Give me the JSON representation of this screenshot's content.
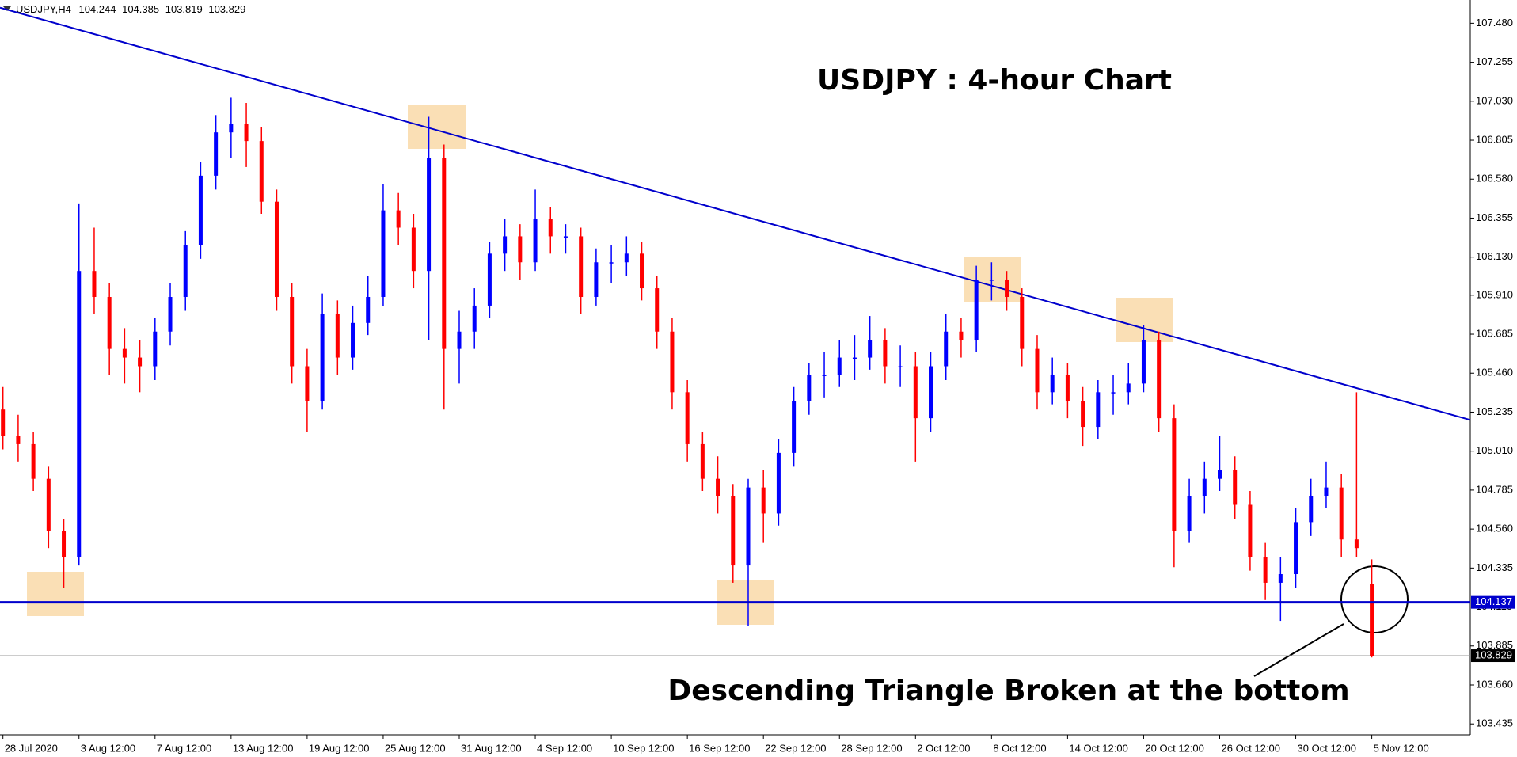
{
  "chart_data": {
    "type": "candlestick",
    "symbol": "USDJPY,H4",
    "title": "USDJPY : 4-hour Chart",
    "annotation": "Descending Triangle Broken at the bottom",
    "up_color": "#0000ff",
    "down_color": "#ff0000",
    "categories": [
      "28 Jul 2020",
      null,
      null,
      null,
      null,
      "3 Aug 12:00",
      null,
      null,
      null,
      null,
      "7 Aug 12:00",
      null,
      null,
      null,
      null,
      "13 Aug 12:00",
      null,
      null,
      null,
      null,
      "19 Aug 12:00",
      null,
      null,
      null,
      null,
      "25 Aug 12:00",
      null,
      null,
      null,
      null,
      "31 Aug 12:00",
      null,
      null,
      null,
      null,
      "4 Sep 12:00",
      null,
      null,
      null,
      null,
      "10 Sep 12:00",
      null,
      null,
      null,
      null,
      "16 Sep 12:00",
      null,
      null,
      null,
      null,
      "22 Sep 12:00",
      null,
      null,
      null,
      null,
      "28 Sep 12:00",
      null,
      null,
      null,
      null,
      "2 Oct 12:00",
      null,
      null,
      null,
      null,
      "8 Oct 12:00",
      null,
      null,
      null,
      null,
      "14 Oct 12:00",
      null,
      null,
      null,
      null,
      "20 Oct 12:00",
      null,
      null,
      null,
      null,
      "26 Oct 12:00",
      null,
      null,
      null,
      null,
      "30 Oct 12:00",
      null,
      null,
      null,
      null,
      "5 Nov 12:00"
    ],
    "ohlc": [
      [
        105.25,
        105.38,
        105.02,
        105.1
      ],
      [
        105.1,
        105.22,
        104.95,
        105.05
      ],
      [
        105.05,
        105.12,
        104.78,
        104.85
      ],
      [
        104.85,
        104.92,
        104.45,
        104.55
      ],
      [
        104.55,
        104.62,
        104.22,
        104.4
      ],
      [
        104.4,
        106.44,
        104.35,
        106.05
      ],
      [
        106.05,
        106.3,
        105.8,
        105.9
      ],
      [
        105.9,
        105.98,
        105.45,
        105.6
      ],
      [
        105.6,
        105.72,
        105.4,
        105.55
      ],
      [
        105.55,
        105.65,
        105.35,
        105.5
      ],
      [
        105.5,
        105.78,
        105.42,
        105.7
      ],
      [
        105.7,
        105.98,
        105.62,
        105.9
      ],
      [
        105.9,
        106.28,
        105.82,
        106.2
      ],
      [
        106.2,
        106.68,
        106.12,
        106.6
      ],
      [
        106.6,
        106.95,
        106.52,
        106.85
      ],
      [
        106.85,
        107.05,
        106.7,
        106.9
      ],
      [
        106.9,
        107.02,
        106.65,
        106.8
      ],
      [
        106.8,
        106.88,
        106.38,
        106.45
      ],
      [
        106.45,
        106.52,
        105.82,
        105.9
      ],
      [
        105.9,
        105.98,
        105.4,
        105.5
      ],
      [
        105.5,
        105.6,
        105.12,
        105.3
      ],
      [
        105.3,
        105.92,
        105.25,
        105.8
      ],
      [
        105.8,
        105.88,
        105.45,
        105.55
      ],
      [
        105.55,
        105.85,
        105.48,
        105.75
      ],
      [
        105.75,
        106.02,
        105.68,
        105.9
      ],
      [
        105.9,
        106.55,
        105.85,
        106.4
      ],
      [
        106.4,
        106.5,
        106.2,
        106.3
      ],
      [
        106.3,
        106.38,
        105.95,
        106.05
      ],
      [
        106.05,
        106.94,
        105.65,
        106.7
      ],
      [
        106.7,
        106.78,
        105.25,
        105.6
      ],
      [
        105.6,
        105.82,
        105.4,
        105.7
      ],
      [
        105.7,
        105.95,
        105.6,
        105.85
      ],
      [
        105.85,
        106.22,
        105.78,
        106.15
      ],
      [
        106.15,
        106.35,
        106.05,
        106.25
      ],
      [
        106.25,
        106.32,
        106.0,
        106.1
      ],
      [
        106.1,
        106.52,
        106.05,
        106.35
      ],
      [
        106.35,
        106.42,
        106.15,
        106.25
      ],
      [
        106.25,
        106.32,
        106.15,
        106.25
      ],
      [
        106.25,
        106.3,
        105.8,
        105.9
      ],
      [
        105.9,
        106.18,
        105.85,
        106.1
      ],
      [
        106.1,
        106.2,
        105.98,
        106.1
      ],
      [
        106.1,
        106.25,
        106.02,
        106.15
      ],
      [
        106.15,
        106.22,
        105.88,
        105.95
      ],
      [
        105.95,
        106.02,
        105.6,
        105.7
      ],
      [
        105.7,
        105.78,
        105.25,
        105.35
      ],
      [
        105.35,
        105.42,
        104.95,
        105.05
      ],
      [
        105.05,
        105.12,
        104.78,
        104.85
      ],
      [
        104.85,
        104.98,
        104.65,
        104.75
      ],
      [
        104.75,
        104.82,
        104.25,
        104.35
      ],
      [
        104.35,
        104.85,
        104.0,
        104.8
      ],
      [
        104.8,
        104.9,
        104.48,
        104.65
      ],
      [
        104.65,
        105.08,
        104.58,
        105.0
      ],
      [
        105.0,
        105.38,
        104.92,
        105.3
      ],
      [
        105.3,
        105.52,
        105.22,
        105.45
      ],
      [
        105.45,
        105.58,
        105.32,
        105.45
      ],
      [
        105.45,
        105.65,
        105.38,
        105.55
      ],
      [
        105.55,
        105.68,
        105.42,
        105.55
      ],
      [
        105.55,
        105.79,
        105.48,
        105.65
      ],
      [
        105.65,
        105.72,
        105.4,
        105.5
      ],
      [
        105.5,
        105.62,
        105.38,
        105.5
      ],
      [
        105.5,
        105.58,
        104.95,
        105.2
      ],
      [
        105.2,
        105.58,
        105.12,
        105.5
      ],
      [
        105.5,
        105.8,
        105.42,
        105.7
      ],
      [
        105.7,
        105.78,
        105.55,
        105.65
      ],
      [
        105.65,
        106.08,
        105.58,
        106.0
      ],
      [
        106.0,
        106.1,
        105.88,
        106.0
      ],
      [
        106.0,
        106.05,
        105.82,
        105.9
      ],
      [
        105.9,
        105.95,
        105.5,
        105.6
      ],
      [
        105.6,
        105.68,
        105.25,
        105.35
      ],
      [
        105.35,
        105.55,
        105.28,
        105.45
      ],
      [
        105.45,
        105.52,
        105.2,
        105.3
      ],
      [
        105.3,
        105.38,
        105.04,
        105.15
      ],
      [
        105.15,
        105.42,
        105.08,
        105.35
      ],
      [
        105.35,
        105.45,
        105.22,
        105.35
      ],
      [
        105.35,
        105.52,
        105.28,
        105.4
      ],
      [
        105.4,
        105.74,
        105.35,
        105.65
      ],
      [
        105.65,
        105.7,
        105.12,
        105.2
      ],
      [
        105.2,
        105.28,
        104.34,
        104.55
      ],
      [
        104.55,
        104.85,
        104.48,
        104.75
      ],
      [
        104.75,
        104.95,
        104.65,
        104.85
      ],
      [
        104.85,
        105.1,
        104.78,
        104.9
      ],
      [
        104.9,
        104.98,
        104.62,
        104.7
      ],
      [
        104.7,
        104.78,
        104.32,
        104.4
      ],
      [
        104.4,
        104.48,
        104.15,
        104.25
      ],
      [
        104.25,
        104.4,
        104.03,
        104.3
      ],
      [
        104.3,
        104.68,
        104.22,
        104.6
      ],
      [
        104.6,
        104.85,
        104.52,
        104.75
      ],
      [
        104.75,
        104.95,
        104.68,
        104.8
      ],
      [
        104.8,
        104.88,
        104.4,
        104.5
      ],
      [
        104.5,
        105.35,
        104.4,
        104.45
      ],
      [
        104.244,
        104.385,
        103.819,
        103.829
      ]
    ],
    "ylim": [
      103.372,
      107.596
    ],
    "yticks": [
      {
        "value": 107.48,
        "label": "107.480"
      },
      {
        "value": 107.255,
        "label": "107.255"
      },
      {
        "value": 107.03,
        "label": "107.030"
      },
      {
        "value": 106.805,
        "label": "106.805"
      },
      {
        "value": 106.58,
        "label": "106.580"
      },
      {
        "value": 106.355,
        "label": "106.355"
      },
      {
        "value": 106.13,
        "label": "106.130"
      },
      {
        "value": 105.91,
        "label": "105.910"
      },
      {
        "value": 105.685,
        "label": "105.685"
      },
      {
        "value": 105.46,
        "label": "105.460"
      },
      {
        "value": 105.235,
        "label": "105.235"
      },
      {
        "value": 105.01,
        "label": "105.010"
      },
      {
        "value": 104.785,
        "label": "104.785"
      },
      {
        "value": 104.56,
        "label": "104.560"
      },
      {
        "value": 104.335,
        "label": "104.335"
      },
      {
        "value": 104.11,
        "label": "104.110"
      },
      {
        "value": 103.885,
        "label": "103.885"
      },
      {
        "value": 103.66,
        "label": "103.660"
      },
      {
        "value": 103.435,
        "label": "103.435"
      }
    ],
    "support": 104.137,
    "support_color": "#0000cc",
    "trendline": [
      107.57,
      105.19
    ],
    "trendline_color": "#0000cc",
    "grid": false
  }
}
